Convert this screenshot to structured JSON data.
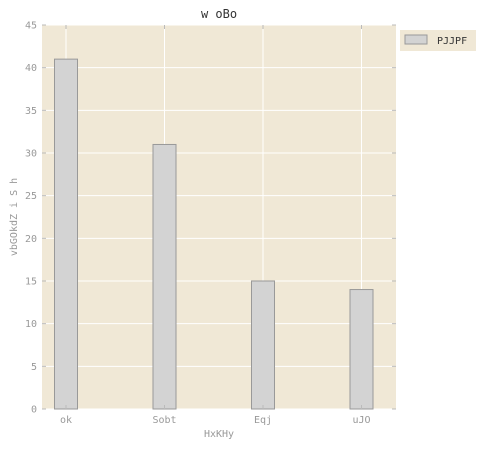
{
  "chart_data": {
    "type": "bar",
    "title": "w oBo",
    "xlabel": "HxKHy",
    "ylabel": "vbGOkdZ i S h",
    "categories": [
      "ok",
      "Sobt",
      "Eqj",
      "uJO"
    ],
    "series": [
      {
        "name": "PJJPF",
        "values": [
          41,
          31,
          15,
          14
        ]
      }
    ],
    "ylim": [
      0,
      45
    ],
    "yticks": [
      0,
      5,
      10,
      15,
      20,
      25,
      30,
      35,
      40,
      45
    ],
    "grid": true,
    "legend_position": "outside-top-right",
    "colors": {
      "plot_background": "#F0E8D6",
      "grid": "#FFFFFF",
      "bar_fill": "#D3D3D3",
      "bar_edge": "#999999",
      "tick_text": "#999999",
      "title_text": "#333333"
    }
  }
}
